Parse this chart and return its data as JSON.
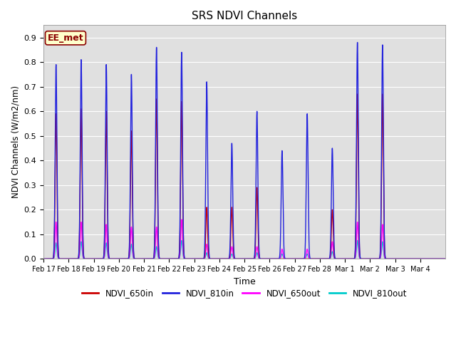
{
  "title": "SRS NDVI Channels",
  "ylabel": "NDVI Channels (W/m2/nm)",
  "xlabel": "Time",
  "annotation": "EE_met",
  "ylim": [
    0,
    0.95
  ],
  "background_color": "#e0e0e0",
  "colors": {
    "NDVI_650in": "#cc0000",
    "NDVI_810in": "#2222dd",
    "NDVI_650out": "#ff00ff",
    "NDVI_810out": "#00cccc"
  },
  "x_tick_labels": [
    "Feb 17",
    "Feb 18",
    "Feb 19",
    "Feb 20",
    "Feb 21",
    "Feb 22",
    "Feb 23",
    "Feb 24",
    "Feb 25",
    "Feb 26",
    "Feb 27",
    "Feb 28",
    "Mar 1",
    "Mar 2",
    "Mar 3",
    "Mar 4"
  ],
  "series": {
    "NDVI_650in": [
      0.59,
      0.61,
      0.6,
      0.52,
      0.65,
      0.64,
      0.21,
      0.21,
      0.29,
      0.0,
      0.0,
      0.2,
      0.67,
      0.67,
      0.0,
      0.0
    ],
    "NDVI_810in": [
      0.79,
      0.81,
      0.79,
      0.75,
      0.86,
      0.84,
      0.72,
      0.47,
      0.6,
      0.44,
      0.59,
      0.45,
      0.88,
      0.87,
      0.0,
      0.0
    ],
    "NDVI_650out": [
      0.15,
      0.15,
      0.14,
      0.13,
      0.13,
      0.16,
      0.06,
      0.05,
      0.05,
      0.04,
      0.04,
      0.07,
      0.15,
      0.14,
      0.0,
      0.0
    ],
    "NDVI_810out": [
      0.065,
      0.07,
      0.065,
      0.06,
      0.05,
      0.075,
      0.025,
      0.02,
      0.025,
      0.02,
      0.02,
      0.03,
      0.075,
      0.07,
      0.0,
      0.0
    ]
  },
  "num_days": 16,
  "pts_per_day": 500,
  "spike_sigma": 0.035
}
